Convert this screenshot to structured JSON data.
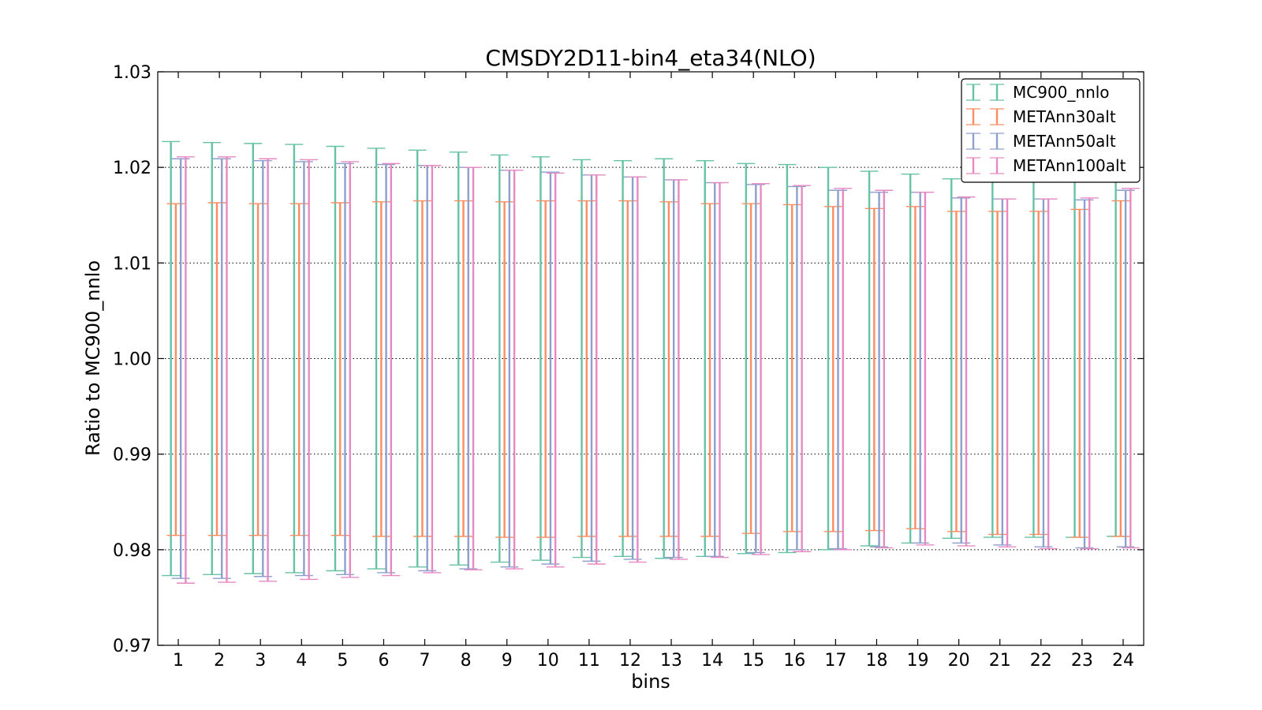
{
  "chart_data": {
    "type": "errorbar",
    "title": "CMSDY2D11-bin4_eta34(NLO)",
    "xlabel": "bins",
    "ylabel": "Ratio to MC900_nnlo",
    "ylim": [
      0.97,
      1.03
    ],
    "xlim": [
      0.5,
      24.5
    ],
    "yticks": [
      "0.97",
      "0.98",
      "0.99",
      "1.00",
      "1.01",
      "1.02",
      "1.03"
    ],
    "ytick_values": [
      0.97,
      0.98,
      0.99,
      1.0,
      1.01,
      1.02,
      1.03
    ],
    "x": [
      1,
      2,
      3,
      4,
      5,
      6,
      7,
      8,
      9,
      10,
      11,
      12,
      13,
      14,
      15,
      16,
      17,
      18,
      19,
      20,
      21,
      22,
      23,
      24
    ],
    "xtick_labels": [
      "1",
      "2",
      "3",
      "4",
      "5",
      "6",
      "7",
      "8",
      "9",
      "10",
      "11",
      "12",
      "13",
      "14",
      "15",
      "16",
      "17",
      "18",
      "19",
      "20",
      "21",
      "22",
      "23",
      "24"
    ],
    "grid": "horizontal dotted",
    "legend_position": "top-right",
    "series": [
      {
        "name": "MC900_nnlo",
        "color": "#66c2a5",
        "upper": [
          1.0227,
          1.0226,
          1.0225,
          1.0224,
          1.0222,
          1.022,
          1.0218,
          1.0216,
          1.0213,
          1.0211,
          1.0208,
          1.0207,
          1.0209,
          1.0207,
          1.0204,
          1.0203,
          1.02,
          1.0196,
          1.0193,
          1.0188,
          1.0187,
          1.0187,
          1.0187,
          1.0186
        ],
        "lower": [
          0.9773,
          0.9774,
          0.9775,
          0.9776,
          0.9778,
          0.978,
          0.9782,
          0.9784,
          0.9787,
          0.9789,
          0.9792,
          0.9793,
          0.9791,
          0.9793,
          0.9796,
          0.9797,
          0.98,
          0.9804,
          0.9807,
          0.9812,
          0.9813,
          0.9813,
          0.9813,
          0.9814
        ]
      },
      {
        "name": "METAnn30alt",
        "color": "#fc8d62",
        "upper": [
          1.0162,
          1.0163,
          1.0162,
          1.0162,
          1.0163,
          1.0164,
          1.0165,
          1.0165,
          1.0164,
          1.0165,
          1.0165,
          1.0165,
          1.0164,
          1.0162,
          1.0162,
          1.0161,
          1.0159,
          1.0157,
          1.0159,
          1.0154,
          1.0154,
          1.0154,
          1.0156,
          1.0165
        ],
        "lower": [
          0.9815,
          0.9815,
          0.9815,
          0.9815,
          0.9815,
          0.9814,
          0.9814,
          0.9814,
          0.9813,
          0.9813,
          0.9814,
          0.9814,
          0.9814,
          0.9814,
          0.9817,
          0.9819,
          0.9819,
          0.982,
          0.9822,
          0.9819,
          0.9816,
          0.9816,
          0.9813,
          0.9814
        ]
      },
      {
        "name": "METAnn50alt",
        "color": "#8da0cb",
        "upper": [
          1.0209,
          1.0209,
          1.0207,
          1.0206,
          1.0204,
          1.0203,
          1.0202,
          1.02,
          1.0197,
          1.0195,
          1.0192,
          1.019,
          1.0187,
          1.0184,
          1.0182,
          1.018,
          1.0176,
          1.0174,
          1.0174,
          1.0168,
          1.0167,
          1.0167,
          1.0166,
          1.0176
        ],
        "lower": [
          0.977,
          0.977,
          0.9772,
          0.9773,
          0.9774,
          0.9776,
          0.9778,
          0.978,
          0.9782,
          0.9785,
          0.9788,
          0.979,
          0.9792,
          0.9793,
          0.9797,
          0.98,
          0.9801,
          0.9803,
          0.9807,
          0.9807,
          0.9805,
          0.9803,
          0.9802,
          0.9803
        ]
      },
      {
        "name": "METAnn100alt",
        "color": "#e78ac3",
        "upper": [
          1.0211,
          1.0211,
          1.0209,
          1.0208,
          1.0206,
          1.0204,
          1.0202,
          1.02,
          1.0197,
          1.0194,
          1.0192,
          1.019,
          1.0187,
          1.0184,
          1.0183,
          1.0181,
          1.0178,
          1.0176,
          1.0174,
          1.0169,
          1.0167,
          1.0167,
          1.0168,
          1.0178
        ],
        "lower": [
          0.9765,
          0.9766,
          0.9767,
          0.9769,
          0.9771,
          0.9773,
          0.9776,
          0.9779,
          0.978,
          0.9782,
          0.9785,
          0.9787,
          0.979,
          0.9792,
          0.9795,
          0.9798,
          0.98,
          0.9802,
          0.9805,
          0.9804,
          0.9803,
          0.9801,
          0.9801,
          0.9802
        ]
      }
    ]
  }
}
